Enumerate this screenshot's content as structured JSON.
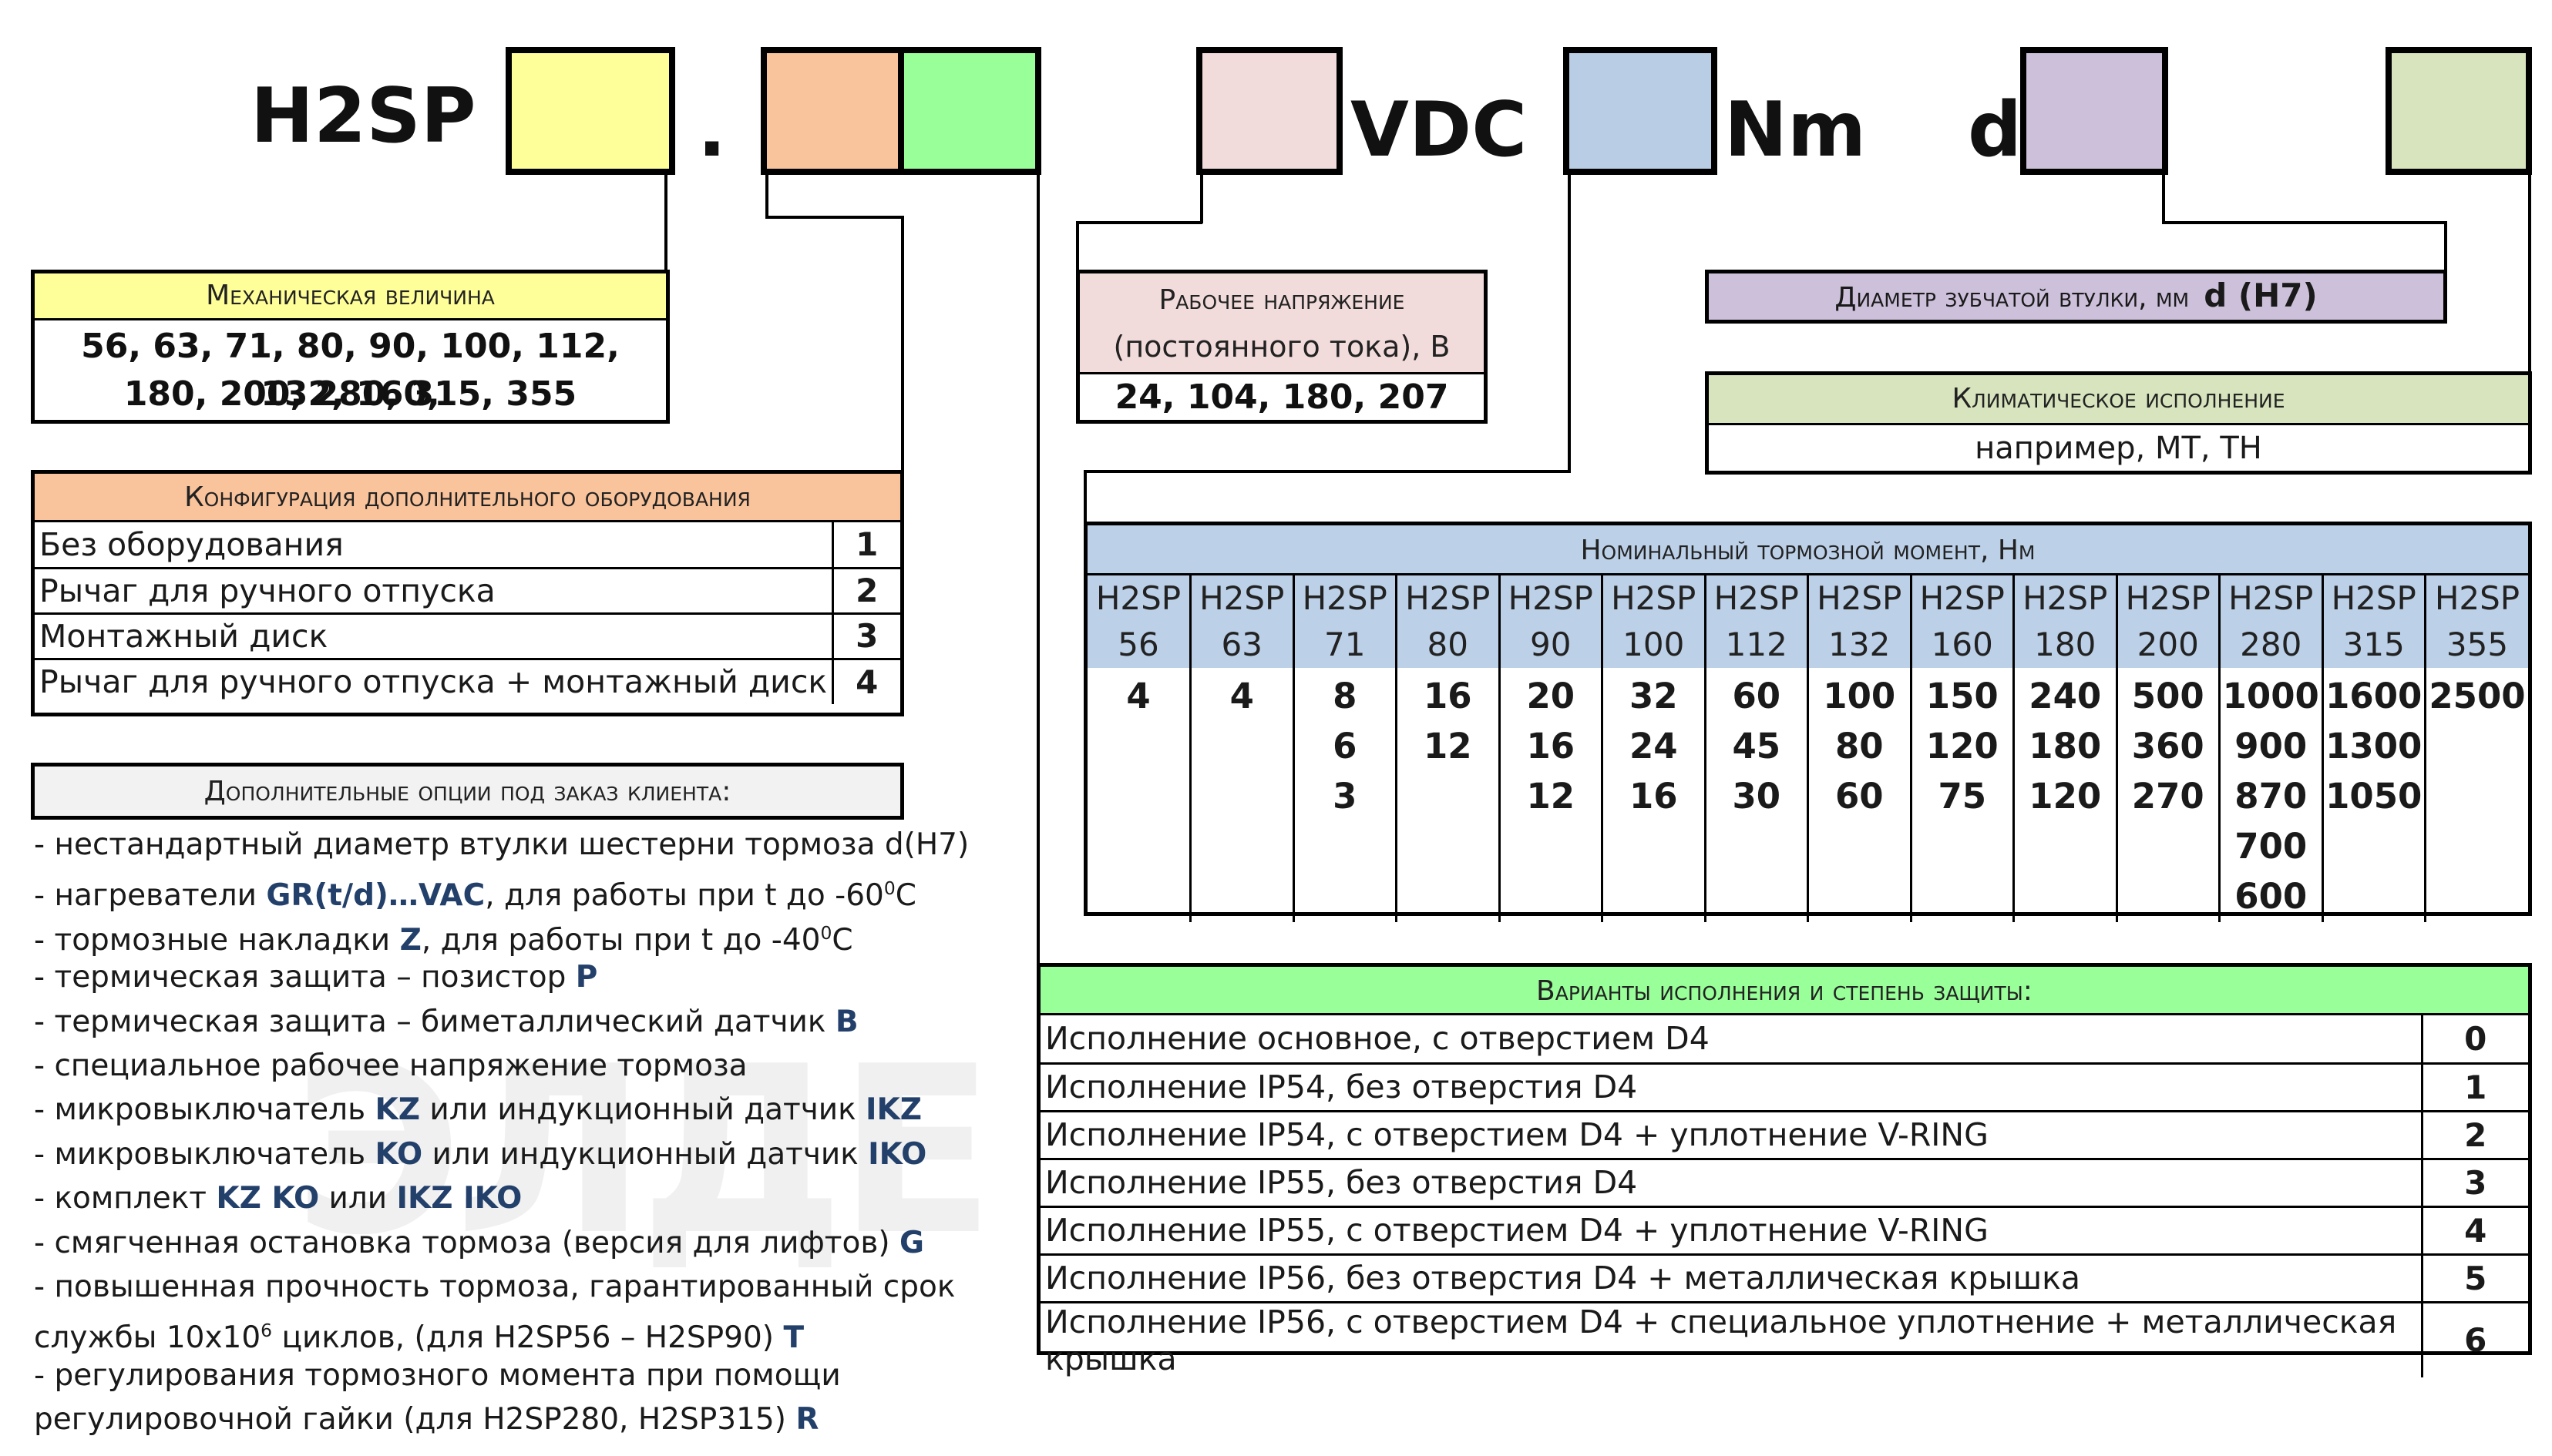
{
  "code": {
    "prefix": "H2SP",
    "dot": ".",
    "vdc": "VDC",
    "nm": "Nm",
    "d": "d"
  },
  "colors": {
    "yellow": "#ffff99",
    "orange": "#f9c39b",
    "green": "#99ff99",
    "pink": "#f2dcdb",
    "blue": "#b9cde5",
    "purple": "#ccc0da",
    "olive": "#d7e4bd",
    "header_grey": "#f2f2f2"
  },
  "mech": {
    "title": "Механическая величина",
    "values_line1": "56, 63, 71, 80, 90, 100, 112, 132, 160,",
    "values_line2": "180, 200,  280, 315, 355"
  },
  "voltage": {
    "title_line1": "Рабочее напряжение",
    "title_line2": "(постоянного тока), В",
    "values": "24, 104, 180, 207"
  },
  "diameter": {
    "title": "Диаметр зубчатой втулки, мм",
    "unit": "d (H7)"
  },
  "climate": {
    "title": "Климатическое исполнение",
    "example": "например, МТ, ТН"
  },
  "config": {
    "title": "Конфигурация дополнительного оборудования",
    "rows": [
      {
        "label": "Без оборудования",
        "code": "1"
      },
      {
        "label": "Рычаг для ручного отпуска",
        "code": "2"
      },
      {
        "label": "Монтажный диск",
        "code": "3"
      },
      {
        "label": "Рычаг для ручного отпуска + монтажный диск",
        "code": "4"
      }
    ]
  },
  "options": {
    "title": "Дополнительные опции  под заказ клиента:",
    "l1": "- нестандартный  диаметр втулки шестерни тормоза d(H7)",
    "l2a": "- нагреватели ",
    "l2b": "GR(t/d)…VAC",
    "l2c": ", для работы при t до -60",
    "l2d": "0",
    "l2e": "С",
    "l3a": "- тормозные накладки ",
    "l3b": "Z",
    "l3c": ", для работы при t до -40",
    "l3d": "0",
    "l3e": "С",
    "l4a": "- термическая  защита – позистор ",
    "l4b": "P",
    "l5a": "- термическая  защита – биметаллический датчик ",
    "l5b": "B",
    "l6": "- специальное рабочее напряжение тормоза",
    "l7a": "- микровыключатель ",
    "l7b": "KZ",
    "l7c": " или индукционный датчик ",
    "l7d": "IKZ",
    "l8a": "- микровыключатель ",
    "l8b": "KO",
    "l8c": " или индукционный датчик ",
    "l8d": "IKO",
    "l9a": "- комплект ",
    "l9b": "KZ KO",
    "l9c": " или ",
    "l9d": "IKZ IKO",
    "l10a": "- смягченная остановка тормоза (версия для лифтов) ",
    "l10b": "G",
    "l11": "- повышенная прочность тормоза, гарантированный срок",
    "l12a": "  службы  10х10",
    "l12b": "6",
    "l12c": " циклов, (для H2SP56 – H2SP90) ",
    "l12d": "T",
    "l13": "- регулирования тормозного момента при помощи",
    "l14a": "  регулировочной гайки (для H2SP280, H2SP315) ",
    "l14b": "R"
  },
  "torque": {
    "title": "Номинальный тормозной момент, Нм",
    "models": [
      {
        "name": "H2SP",
        "size": "56",
        "values": [
          "4"
        ]
      },
      {
        "name": "H2SP",
        "size": "63",
        "values": [
          "4"
        ]
      },
      {
        "name": "H2SP",
        "size": "71",
        "values": [
          "8",
          "6",
          "3"
        ]
      },
      {
        "name": "H2SP",
        "size": "80",
        "values": [
          "16",
          "12"
        ]
      },
      {
        "name": "H2SP",
        "size": "90",
        "values": [
          "20",
          "16",
          "12"
        ]
      },
      {
        "name": "H2SP",
        "size": "100",
        "values": [
          "32",
          "24",
          "16"
        ]
      },
      {
        "name": "H2SP",
        "size": "112",
        "values": [
          "60",
          "45",
          "30"
        ]
      },
      {
        "name": "H2SP",
        "size": "132",
        "values": [
          "100",
          "80",
          "60"
        ]
      },
      {
        "name": "H2SP",
        "size": "160",
        "values": [
          "150",
          "120",
          "75"
        ]
      },
      {
        "name": "H2SP",
        "size": "180",
        "values": [
          "240",
          "180",
          "120"
        ]
      },
      {
        "name": "H2SP",
        "size": "200",
        "values": [
          "500",
          "360",
          "270"
        ]
      },
      {
        "name": "H2SP",
        "size": "280",
        "values": [
          "1000",
          "900",
          "870",
          "700",
          "600"
        ]
      },
      {
        "name": "H2SP",
        "size": "315",
        "values": [
          "1600",
          "1300",
          "1050"
        ]
      },
      {
        "name": "H2SP",
        "size": "355",
        "values": [
          "2500"
        ]
      }
    ]
  },
  "versions": {
    "title": "Варианты исполнения и степень защиты:",
    "rows": [
      {
        "label": "Исполнение основное, с отверстием D4",
        "code": "0"
      },
      {
        "label": "Исполнение IP54, без отверстия D4",
        "code": "1"
      },
      {
        "label": "Исполнение IP54, с отверстием D4 + уплотнение V-RING",
        "code": "2"
      },
      {
        "label": "Исполнение IP55, без отверстия D4",
        "code": "3"
      },
      {
        "label": "Исполнение IP55, с отверстием D4 + уплотнение V-RING",
        "code": "4"
      },
      {
        "label": "Исполнение IP56, без отверстия D4 + металлическая крышка",
        "code": "5"
      },
      {
        "label": "Исполнение IP56, с отверстием D4 + специальное уплотнение + металлическая крышка",
        "code": "6"
      }
    ]
  }
}
